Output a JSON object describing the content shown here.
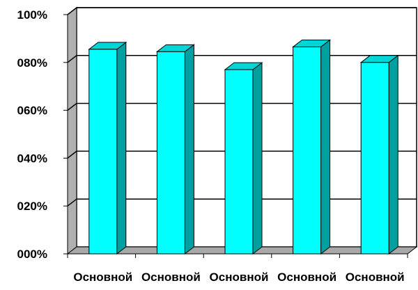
{
  "chart_data": {
    "type": "bar",
    "style": "3d-column",
    "categories": [
      "Основной",
      "Основной",
      "Основной",
      "Основной",
      "Основной"
    ],
    "series": [
      {
        "values": [
          0.855,
          0.845,
          0.77,
          0.865,
          0.8
        ]
      }
    ],
    "ylim": [
      0,
      1
    ],
    "yticks": [
      {
        "value": 0.0,
        "label": "000%"
      },
      {
        "value": 0.2,
        "label": "020%"
      },
      {
        "value": 0.4,
        "label": "040%"
      },
      {
        "value": 0.6,
        "label": "060%"
      },
      {
        "value": 0.8,
        "label": "080%"
      },
      {
        "value": 1.0,
        "label": "100%"
      }
    ],
    "grid": true,
    "legend": "none",
    "colors": {
      "bar_front": "#00ffff",
      "bar_side": "#00a0a0",
      "bar_top": "#00d6d6",
      "back_wall": "#ffffff",
      "side_wall": "#b0b0b0",
      "floor": "#a8a8a8",
      "gridline": "#000000"
    }
  }
}
